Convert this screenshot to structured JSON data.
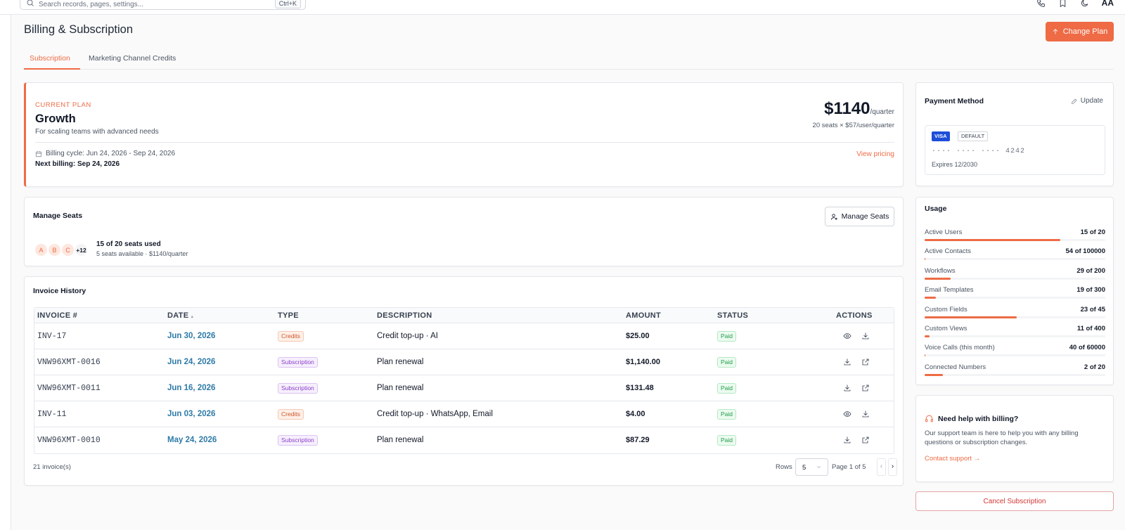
{
  "topbar": {
    "search_placeholder": "Search records, pages, settings...",
    "search_shortcut": "Ctrl+K",
    "user_initials": "AA"
  },
  "header": {
    "title": "Billing & Subscription",
    "change_plan_label": "Change Plan"
  },
  "tabs": [
    {
      "label": "Subscription",
      "active": true
    },
    {
      "label": "Marketing Channel Credits",
      "active": false
    }
  ],
  "plan": {
    "label": "CURRENT PLAN",
    "name": "Growth",
    "description": "For scaling teams with advanced needs",
    "price": "$1140",
    "period": "/quarter",
    "seats_formula": "20 seats × $57/user/quarter",
    "billing_cycle": "Billing cycle: Jun 24, 2026 - Sep 24, 2026",
    "next_billing": "Next billing: Sep 24, 2026",
    "view_pricing": "View pricing"
  },
  "seats": {
    "title": "Manage Seats",
    "button_label": "Manage Seats",
    "avatars": [
      "A",
      "B",
      "C"
    ],
    "more": "+12",
    "used": "15 of 20 seats used",
    "available": "5 seats available · $1140/quarter"
  },
  "invoices": {
    "title": "Invoice History",
    "columns": {
      "invoice": "INVOICE #",
      "date": "DATE",
      "type": "TYPE",
      "description": "DESCRIPTION",
      "amount": "AMOUNT",
      "status": "STATUS",
      "actions": "ACTIONS"
    },
    "sort_indicator": "▴",
    "rows": [
      {
        "invoice": "INV-17",
        "date": "Jun 30, 2026",
        "type": "Credits",
        "description": "Credit top-up · AI",
        "amount": "$25.00",
        "status": "Paid",
        "actions": [
          "eye-icon",
          "download-icon"
        ]
      },
      {
        "invoice": "VNW96XMT-0016",
        "date": "Jun 24, 2026",
        "type": "Subscription",
        "description": "Plan renewal",
        "amount": "$1,140.00",
        "status": "Paid",
        "actions": [
          "download-icon",
          "external-link-icon"
        ]
      },
      {
        "invoice": "VNW96XMT-0011",
        "date": "Jun 16, 2026",
        "type": "Subscription",
        "description": "Plan renewal",
        "amount": "$131.48",
        "status": "Paid",
        "actions": [
          "download-icon",
          "external-link-icon"
        ]
      },
      {
        "invoice": "INV-11",
        "date": "Jun 03, 2026",
        "type": "Credits",
        "description": "Credit top-up · WhatsApp, Email",
        "amount": "$4.00",
        "status": "Paid",
        "actions": [
          "eye-icon",
          "download-icon"
        ]
      },
      {
        "invoice": "VNW96XMT-0010",
        "date": "May 24, 2026",
        "type": "Subscription",
        "description": "Plan renewal",
        "amount": "$87.29",
        "status": "Paid",
        "actions": [
          "download-icon",
          "external-link-icon"
        ]
      }
    ],
    "count": "21 invoice(s)",
    "rows_label": "Rows",
    "rows_value": "5",
    "page_label": "Page 1 of 5",
    "prev": "‹",
    "next": "›"
  },
  "payment": {
    "title": "Payment Method",
    "update_label": "Update",
    "brand": "VISA",
    "default_label": "DEFAULT",
    "card_number": "···· ···· ···· 4242",
    "expires": "Expires 12/2030"
  },
  "usage": {
    "title": "Usage",
    "items": [
      {
        "label": "Active Users",
        "value": "15 of 20",
        "fraction": 0.75
      },
      {
        "label": "Active Contacts",
        "value": "54 of 100000",
        "fraction": 0.0005
      },
      {
        "label": "Workflows",
        "value": "29 of 200",
        "fraction": 0.145
      },
      {
        "label": "Email Templates",
        "value": "19 of 300",
        "fraction": 0.063
      },
      {
        "label": "Custom Fields",
        "value": "23 of 45",
        "fraction": 0.51
      },
      {
        "label": "Custom Views",
        "value": "11 of 400",
        "fraction": 0.0275
      },
      {
        "label": "Voice Calls (this month)",
        "value": "40 of 60000",
        "fraction": 0.0007
      },
      {
        "label": "Connected Numbers",
        "value": "2 of 20",
        "fraction": 0.1
      }
    ]
  },
  "help": {
    "title": "Need help with billing?",
    "text": "Our support team is here to help you with any billing questions or subscription changes.",
    "contact": "Contact support →"
  },
  "cancel_label": "Cancel Subscription",
  "colors": {
    "accent": "#ee6b45",
    "link": "#2e7aa8",
    "paid": "#1f9a48",
    "subscription": "#8a3fc9",
    "danger": "#d43535"
  }
}
